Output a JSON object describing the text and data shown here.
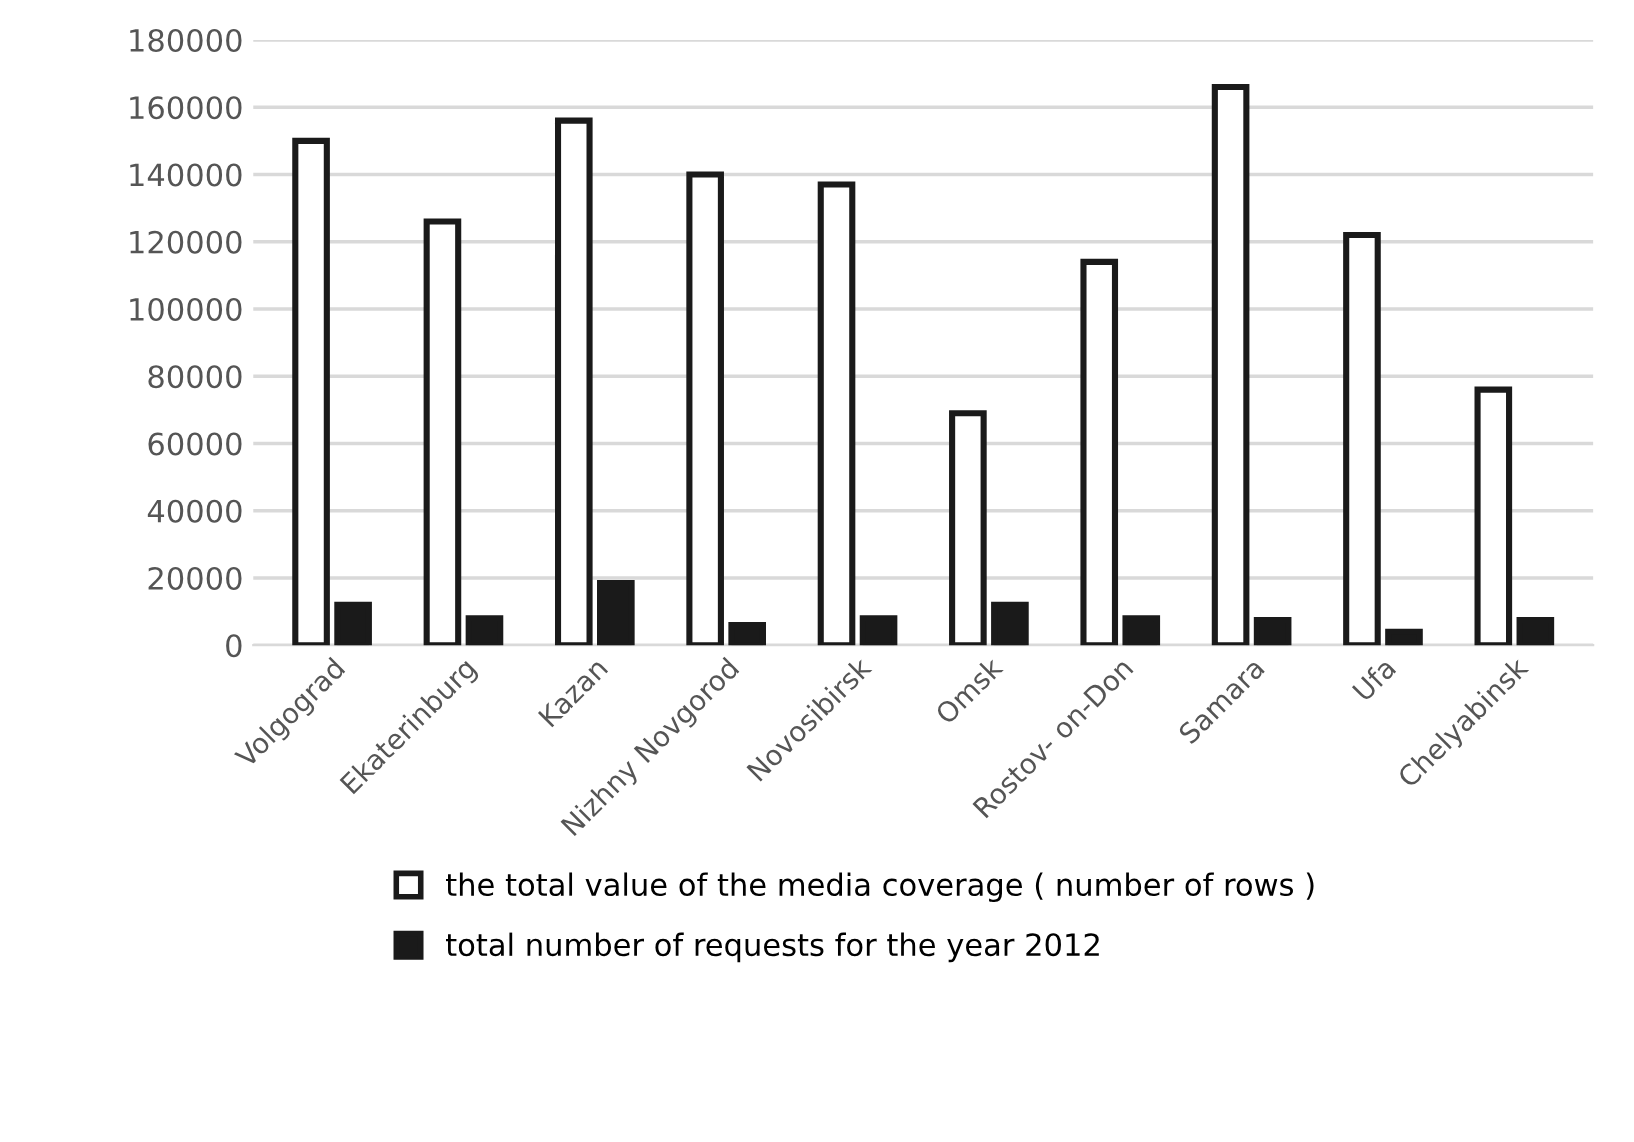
{
  "chart_data": {
    "type": "bar",
    "categories": [
      "Volgograd",
      "Ekaterinburg",
      "Kazan",
      "Nizhny Novgorod",
      "Novosibirsk",
      "Omsk",
      "Rostov- on-Don",
      "Samara",
      "Ufa",
      "Chelyabinsk"
    ],
    "series": [
      {
        "name": "the total value of the media coverage ( number of rows )",
        "color": "#ffffff",
        "values": [
          150000,
          126000,
          156000,
          140000,
          137000,
          69000,
          114000,
          166000,
          122000,
          76000
        ]
      },
      {
        "name": "total number of requests for the year 2012",
        "color": "#1a1a1a",
        "values": [
          12000,
          8000,
          18500,
          6000,
          8000,
          12000,
          8000,
          7500,
          4000,
          7500
        ]
      }
    ],
    "ylim": [
      0,
      180000
    ],
    "yticks": [
      0,
      20000,
      40000,
      60000,
      80000,
      100000,
      120000,
      140000,
      160000,
      180000
    ],
    "grid": "y",
    "legend": "bottom"
  }
}
